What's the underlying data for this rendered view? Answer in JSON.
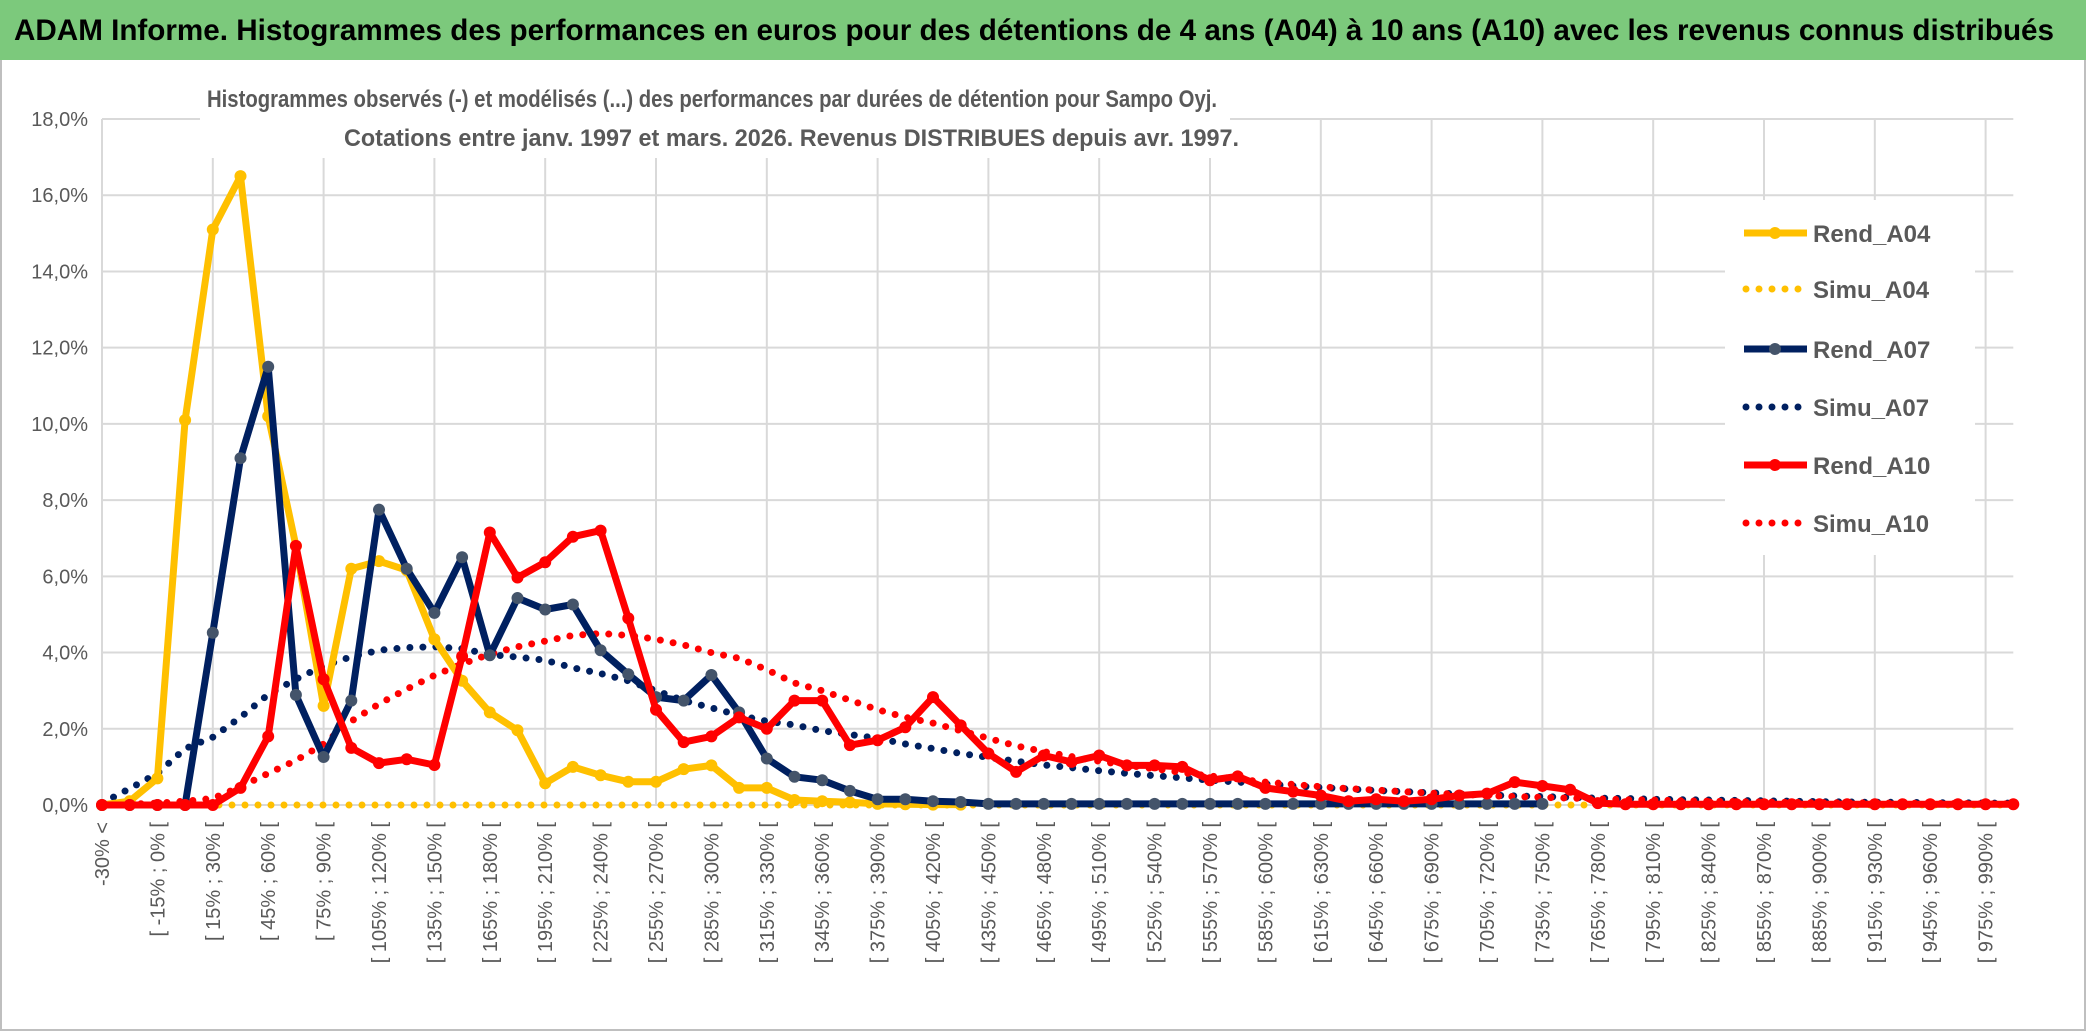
{
  "header": {
    "title": "ADAM Informe. Histogrammes des performances en euros pour des détentions de 4 ans (A04) à 10 ans (A10) avec les revenus connus distribués",
    "bg_color": "#7CC97C"
  },
  "chart_data": {
    "type": "line",
    "title_lines": [
      "Histogrammes observés (-) et modélisés (...) des performances par durées de détention pour Sampo Oyj.",
      "Cotations entre janv. 1997 et mars. 2026. Revenus DISTRIBUES depuis avr. 1997."
    ],
    "xlabel": "",
    "ylabel": "",
    "ylim": [
      0,
      18
    ],
    "y_ticks": [
      "0,0%",
      "2,0%",
      "4,0%",
      "6,0%",
      "8,0%",
      "10,0%",
      "12,0%",
      "14,0%",
      "16,0%",
      "18,0%"
    ],
    "points_per_x_tick": 2,
    "x_tick_labels": [
      "-30% <",
      "[ -15% ; 0% [",
      "[ 15% ; 30% [",
      "[ 45% ; 60% [",
      "[ 75% ; 90% [",
      "[ 105% ; 120% [",
      "[ 135% ; 150% [",
      "[ 165% ; 180% [",
      "[ 195% ; 210% [",
      "[ 225% ; 240% [",
      "[ 255% ; 270% [",
      "[ 285% ; 300% [",
      "[ 315% ; 330% [",
      "[ 345% ; 360% [",
      "[ 375% ; 390% [",
      "[ 405% ; 420% [",
      "[ 435% ; 450% [",
      "[ 465% ; 480% [",
      "[ 495% ; 510% [",
      "[ 525% ; 540% [",
      "[ 555% ; 570% [",
      "[ 585% ; 600% [",
      "[ 615% ; 630% [",
      "[ 645% ; 660% [",
      "[ 675% ; 690% [",
      "[ 705% ; 720% [",
      "[ 735% ; 750% [",
      "[ 765% ; 780% [",
      "[ 795% ; 810% [",
      "[ 825% ; 840% [",
      "[ 855% ; 870% [",
      "[ 885% ; 900% [",
      "[ 915% ; 930% [",
      "[ 945% ; 960% [",
      "[ 975% ; 990% ["
    ],
    "grid": true,
    "legend_position": "right",
    "series": [
      {
        "name": "Rend_A04",
        "color": "#FFC000",
        "style": "solid-marker",
        "values": [
          0,
          0.1,
          0.7,
          10.1,
          15.1,
          16.5,
          10.2,
          6.8,
          2.6,
          6.2,
          6.4,
          6.16,
          4.35,
          3.26,
          2.43,
          1.96,
          0.57,
          1.0,
          0.78,
          0.61,
          0.61,
          0.94,
          1.04,
          0.45,
          0.45,
          0.13,
          0.1,
          0.07,
          0.03,
          0.02,
          0.01,
          0.01,
          null,
          null,
          null,
          null,
          null,
          null,
          null,
          null,
          null,
          null,
          null,
          null,
          null,
          null,
          null,
          null,
          null,
          null,
          null,
          null,
          null,
          null,
          null,
          null,
          null,
          null,
          null,
          null,
          null,
          null,
          null,
          null,
          null,
          null,
          null,
          null,
          null,
          null
        ]
      },
      {
        "name": "Simu_A04",
        "color": "#FFC000",
        "style": "dotted",
        "values": [
          0,
          0,
          0,
          0,
          0,
          0,
          0,
          0,
          0,
          0,
          0,
          0,
          0,
          0,
          0,
          0,
          0,
          0,
          0,
          0,
          0,
          0,
          0,
          0,
          0,
          0,
          0,
          0,
          0,
          0,
          0,
          0,
          0,
          0,
          0,
          0,
          0,
          0,
          0,
          0,
          0,
          0,
          0,
          0,
          0,
          0,
          0,
          0,
          0,
          0,
          0,
          0,
          0,
          0,
          0,
          0,
          0,
          0,
          0,
          0,
          0,
          0,
          0,
          0,
          0,
          0,
          0,
          0,
          0,
          0
        ]
      },
      {
        "name": "Rend_A07",
        "color": "#002060",
        "style": "solid-marker",
        "values": [
          0,
          0,
          0,
          0,
          4.52,
          9.1,
          11.5,
          2.89,
          1.26,
          2.74,
          7.75,
          6.2,
          5.04,
          6.5,
          3.93,
          5.43,
          5.13,
          5.26,
          4.06,
          3.43,
          2.83,
          2.74,
          3.41,
          2.43,
          1.22,
          0.74,
          0.65,
          0.37,
          0.15,
          0.15,
          0.1,
          0.08,
          0.03,
          0.03,
          0.03,
          0.03,
          0.03,
          0.03,
          0.03,
          0.03,
          0.03,
          0.03,
          0.03,
          0.03,
          0.03,
          0.03,
          0.03,
          0.03,
          0.03,
          0.03,
          0.03,
          0.03,
          0.03,
          null,
          null,
          null,
          null,
          null,
          null,
          null,
          null,
          null,
          null,
          null,
          null,
          null,
          null,
          null,
          null,
          null
        ]
      },
      {
        "name": "Simu_A07",
        "color": "#002060",
        "style": "dotted",
        "values": [
          0.05,
          0.43,
          0.83,
          1.48,
          1.78,
          2.3,
          2.9,
          3.3,
          3.65,
          3.89,
          4.06,
          4.13,
          4.15,
          4.1,
          3.95,
          3.88,
          3.8,
          3.6,
          3.45,
          3.26,
          3.0,
          2.74,
          2.55,
          2.35,
          2.2,
          2.1,
          1.95,
          1.85,
          1.75,
          1.6,
          1.48,
          1.35,
          1.25,
          1.15,
          1.05,
          0.98,
          0.9,
          0.83,
          0.77,
          0.71,
          0.65,
          0.6,
          0.55,
          0.5,
          0.46,
          0.42,
          0.38,
          0.35,
          0.32,
          0.29,
          0.26,
          0.24,
          0.22,
          0.2,
          0.18,
          0.17,
          0.15,
          0.14,
          0.13,
          0.12,
          0.11,
          0.1,
          0.09,
          0.08,
          0.07,
          0.07,
          0.06,
          0.06,
          0.05,
          0.05
        ]
      },
      {
        "name": "Rend_A10",
        "color": "#FF0000",
        "style": "solid-marker",
        "values": [
          0,
          0,
          0,
          0,
          0,
          0.45,
          1.8,
          6.8,
          3.3,
          1.5,
          1.1,
          1.2,
          1.05,
          3.9,
          7.15,
          5.97,
          6.37,
          7.04,
          7.2,
          4.9,
          2.5,
          1.65,
          1.8,
          2.3,
          2.0,
          2.74,
          2.74,
          1.57,
          1.7,
          2.04,
          2.83,
          2.09,
          1.35,
          0.87,
          1.3,
          1.13,
          1.3,
          1.04,
          1.04,
          1.0,
          0.65,
          0.75,
          0.45,
          0.35,
          0.25,
          0.1,
          0.15,
          0.1,
          0.15,
          0.25,
          0.3,
          0.6,
          0.5,
          0.4,
          0.05,
          0.02,
          0.02,
          0.02,
          0.02,
          0.02,
          0.02,
          0.02,
          0.02,
          0.02,
          0.02,
          0.02,
          0.02,
          0.02,
          0.02,
          0.02
        ]
      },
      {
        "name": "Simu_A10",
        "color": "#FF0000",
        "style": "dotted",
        "values": [
          0,
          0.02,
          0.05,
          0.1,
          0.17,
          0.48,
          0.83,
          1.17,
          1.6,
          2.2,
          2.65,
          3.04,
          3.4,
          3.7,
          3.96,
          4.15,
          4.3,
          4.45,
          4.5,
          4.45,
          4.35,
          4.2,
          4.0,
          3.85,
          3.55,
          3.2,
          3.0,
          2.75,
          2.5,
          2.3,
          2.15,
          1.95,
          1.75,
          1.55,
          1.4,
          1.27,
          1.15,
          1.04,
          0.95,
          0.85,
          0.76,
          0.68,
          0.6,
          0.54,
          0.48,
          0.43,
          0.39,
          0.35,
          0.31,
          0.28,
          0.25,
          0.22,
          0.2,
          0.18,
          0.16,
          0.14,
          0.13,
          0.11,
          0.1,
          0.09,
          0.08,
          0.07,
          0.06,
          0.06,
          0.05,
          0.05,
          0.04,
          0.04,
          0.03,
          0.03
        ]
      }
    ]
  }
}
